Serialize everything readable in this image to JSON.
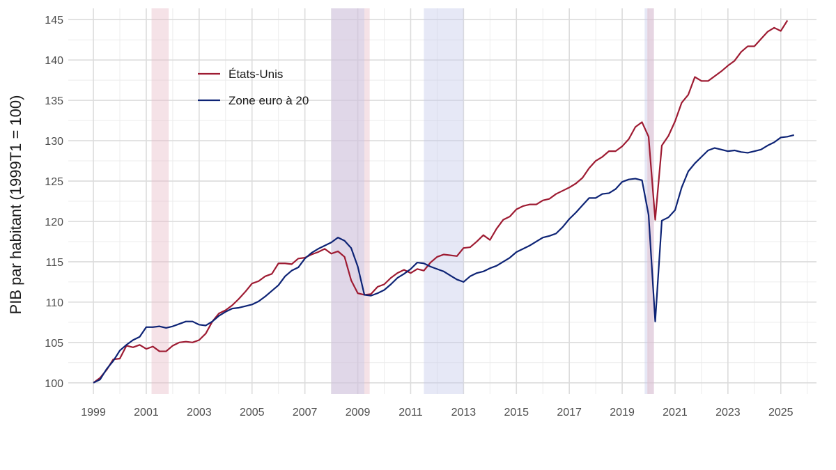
{
  "chart_data": {
    "type": "line",
    "title": "",
    "xlabel": "",
    "ylabel": "PIB par habitant (1999T1 = 100)",
    "xlim": [
      1998.05,
      2026.35
    ],
    "ylim": [
      98.6,
      146.4
    ],
    "x_ticks": [
      1999,
      2001,
      2003,
      2005,
      2007,
      2009,
      2011,
      2013,
      2015,
      2017,
      2019,
      2021,
      2023,
      2025
    ],
    "x_tick_labels": [
      "1999",
      "2001",
      "2003",
      "2005",
      "2007",
      "2009",
      "2011",
      "2013",
      "2015",
      "2017",
      "2019",
      "2021",
      "2023",
      "2025"
    ],
    "y_ticks": [
      100,
      105,
      110,
      115,
      120,
      125,
      130,
      135,
      140,
      145
    ],
    "y_tick_labels": [
      "100",
      "105",
      "110",
      "115",
      "120",
      "125",
      "130",
      "135",
      "140",
      "145"
    ],
    "grid": true,
    "legend_position": "top-left",
    "recessions": [
      {
        "region": "us",
        "start": 2001.2,
        "end": 2001.85,
        "color": "#e8b9c6"
      },
      {
        "region": "us",
        "start": 2008.0,
        "end": 2009.45,
        "color": "#e8b9c6"
      },
      {
        "region": "ea",
        "start": 2008.0,
        "end": 2009.25,
        "color": "#c4c9ea"
      },
      {
        "region": "ea",
        "start": 2011.5,
        "end": 2013.0,
        "color": "#c4c9ea"
      },
      {
        "region": "ea",
        "start": 2019.85,
        "end": 2020.2,
        "color": "#c4c9ea"
      },
      {
        "region": "us",
        "start": 2019.95,
        "end": 2020.2,
        "color": "#e8b9c6"
      }
    ],
    "series": [
      {
        "name": "États-Unis",
        "color": "#9e1b32",
        "start": 1999.0,
        "step": 0.25,
        "values": [
          100,
          100.6,
          101.6,
          102.9,
          103.0,
          104.6,
          104.4,
          104.7,
          104.2,
          104.5,
          103.9,
          103.9,
          104.6,
          105.0,
          105.1,
          105.0,
          105.3,
          106.1,
          107.6,
          108.6,
          109.0,
          109.6,
          110.4,
          111.3,
          112.3,
          112.6,
          113.2,
          113.5,
          114.8,
          114.8,
          114.7,
          115.4,
          115.5,
          115.9,
          116.2,
          116.6,
          116.0,
          116.3,
          115.6,
          112.7,
          111.1,
          110.9,
          111.0,
          111.9,
          112.2,
          113.0,
          113.6,
          114.0,
          113.6,
          114.1,
          113.9,
          114.9,
          115.6,
          115.9,
          115.8,
          115.7,
          116.7,
          116.8,
          117.5,
          118.3,
          117.7,
          119.1,
          120.2,
          120.6,
          121.5,
          121.9,
          122.1,
          122.1,
          122.6,
          122.8,
          123.4,
          123.8,
          124.2,
          124.7,
          125.4,
          126.6,
          127.5,
          128.0,
          128.7,
          128.7,
          129.3,
          130.2,
          131.7,
          132.3,
          130.5,
          120.2,
          129.4,
          130.6,
          132.4,
          134.7,
          135.7,
          137.9,
          137.4,
          137.4,
          138.0,
          138.6,
          139.3,
          139.9,
          141.0,
          141.7,
          141.7,
          142.6,
          143.5,
          144.0,
          143.6,
          144.9
        ]
      },
      {
        "name": "Zone euro à 20",
        "color": "#0d2375",
        "start": 1999.0,
        "step": 0.25,
        "values": [
          100,
          100.4,
          101.7,
          102.7,
          104.0,
          104.7,
          105.3,
          105.7,
          106.9,
          106.9,
          107.0,
          106.8,
          107.0,
          107.3,
          107.6,
          107.6,
          107.2,
          107.1,
          107.6,
          108.3,
          108.8,
          109.2,
          109.3,
          109.5,
          109.7,
          110.1,
          110.7,
          111.4,
          112.1,
          113.2,
          113.9,
          114.3,
          115.4,
          116.1,
          116.6,
          117.0,
          117.4,
          118.0,
          117.6,
          116.7,
          114.4,
          110.9,
          110.8,
          111.1,
          111.5,
          112.2,
          113.0,
          113.5,
          114.1,
          114.9,
          114.8,
          114.4,
          114.1,
          113.8,
          113.3,
          112.8,
          112.5,
          113.2,
          113.6,
          113.8,
          114.2,
          114.5,
          115.0,
          115.5,
          116.2,
          116.6,
          117.0,
          117.5,
          118.0,
          118.2,
          118.5,
          119.3,
          120.3,
          121.1,
          122.0,
          122.9,
          122.9,
          123.4,
          123.5,
          124.0,
          124.9,
          125.2,
          125.3,
          125.1,
          120.8,
          107.6,
          120.1,
          120.5,
          121.4,
          124.2,
          126.2,
          127.2,
          128.0,
          128.8,
          129.1,
          128.9,
          128.7,
          128.8,
          128.6,
          128.5,
          128.7,
          128.9,
          129.4,
          129.8,
          130.4,
          130.5,
          130.7
        ]
      }
    ]
  }
}
